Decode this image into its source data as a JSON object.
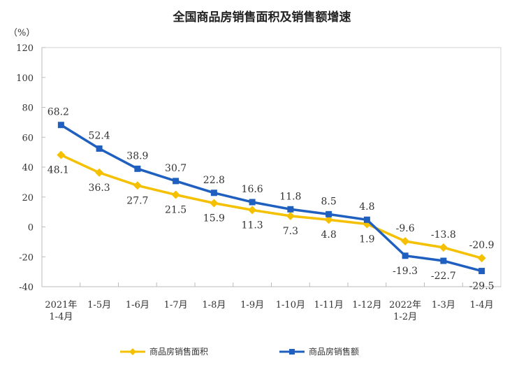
{
  "chart_data": {
    "type": "line",
    "title": "全国商品房销售面积及销售额增速",
    "ylabel": "（%）",
    "ylim": [
      -40,
      120
    ],
    "yticks": [
      -40,
      -20,
      0,
      20,
      40,
      60,
      80,
      100,
      120
    ],
    "categories": [
      [
        "2021年",
        "1-4月"
      ],
      [
        "1-5月"
      ],
      [
        "1-6月"
      ],
      [
        "1-7月"
      ],
      [
        "1-8月"
      ],
      [
        "1-9月"
      ],
      [
        "1-10月"
      ],
      [
        "1-11月"
      ],
      [
        "1-12月"
      ],
      [
        "2022年",
        "1-2月"
      ],
      [
        "1-3月"
      ],
      [
        "1-4月"
      ]
    ],
    "series": [
      {
        "name": "商品房销售面积",
        "color": "#F5C000",
        "marker": "diamond",
        "values": [
          48.1,
          36.3,
          27.7,
          21.5,
          15.9,
          11.3,
          7.3,
          4.8,
          1.9,
          -9.6,
          -13.8,
          -20.9
        ]
      },
      {
        "name": "商品房销售额",
        "color": "#1F5FBF",
        "marker": "square",
        "values": [
          68.2,
          52.4,
          38.9,
          30.7,
          22.8,
          16.6,
          11.8,
          8.5,
          4.8,
          -19.3,
          -22.7,
          -29.5
        ]
      }
    ],
    "grid": false,
    "legend": "bottom"
  }
}
